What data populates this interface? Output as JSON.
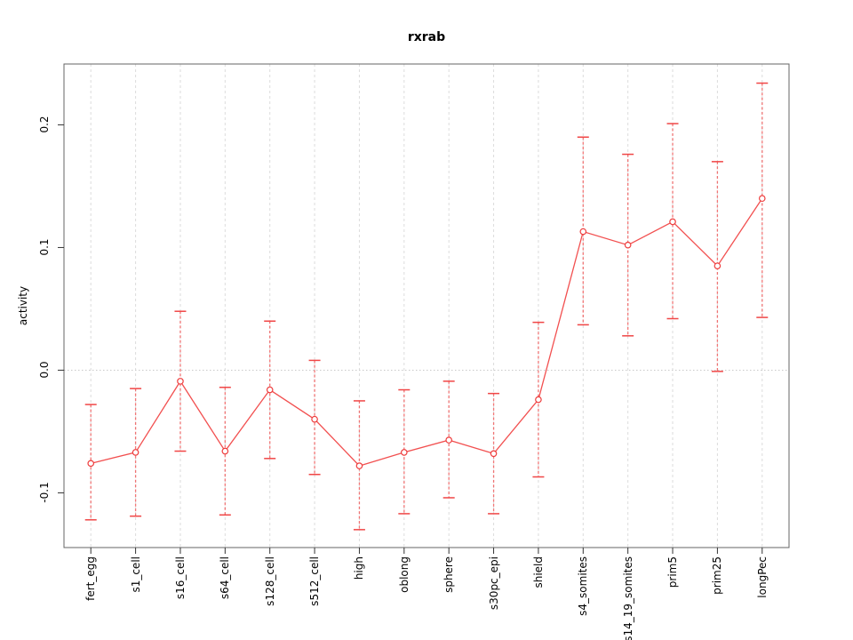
{
  "chart_data": {
    "type": "line",
    "title": "rxrab",
    "xlabel": "",
    "ylabel": "activity",
    "legend_position": "none",
    "categories": [
      "fert_egg",
      "s1_cell",
      "s16_cell",
      "s64_cell",
      "s128_cell",
      "s512_cell",
      "high",
      "oblong",
      "sphere",
      "s30pc_epi",
      "shield",
      "s4_somites",
      "s14_19_somites",
      "prim5",
      "prim25",
      "longPec"
    ],
    "series": [
      {
        "name": "activity",
        "values": [
          -0.076,
          -0.067,
          -0.009,
          -0.066,
          -0.016,
          -0.04,
          -0.078,
          -0.067,
          -0.057,
          -0.068,
          -0.024,
          0.113,
          0.102,
          0.121,
          0.085,
          0.14
        ],
        "error_low": [
          -0.122,
          -0.119,
          -0.066,
          -0.118,
          -0.072,
          -0.085,
          -0.13,
          -0.117,
          -0.104,
          -0.117,
          -0.087,
          0.037,
          0.028,
          0.042,
          -0.001,
          0.043
        ],
        "error_high": [
          -0.028,
          -0.015,
          0.048,
          -0.014,
          0.04,
          0.008,
          -0.025,
          -0.016,
          -0.009,
          -0.019,
          0.039,
          0.19,
          0.176,
          0.201,
          0.17,
          0.234
        ]
      }
    ],
    "ylim": [
      -0.1446,
      0.2496
    ],
    "yticks": [
      -0.1,
      0.0,
      0.1,
      0.2
    ],
    "ytick_labels": [
      "-0.1",
      "0.0",
      "0.1",
      "0.2"
    ],
    "grid_vertical_dashed_at_categories": true,
    "zero_reference_line_dotted": true,
    "marker": "open-circle",
    "error_bar_style": "dashed-with-caps",
    "colors": {
      "series_line": "#f25050",
      "marker_stroke": "#ee3c3c",
      "error_bar": "#f26060",
      "error_cap": "#f04646",
      "grid": "#dcdcdc",
      "zero_line": "#c9c9c9",
      "frame": "#666666",
      "tick": "#333333",
      "text": "#000000"
    }
  }
}
